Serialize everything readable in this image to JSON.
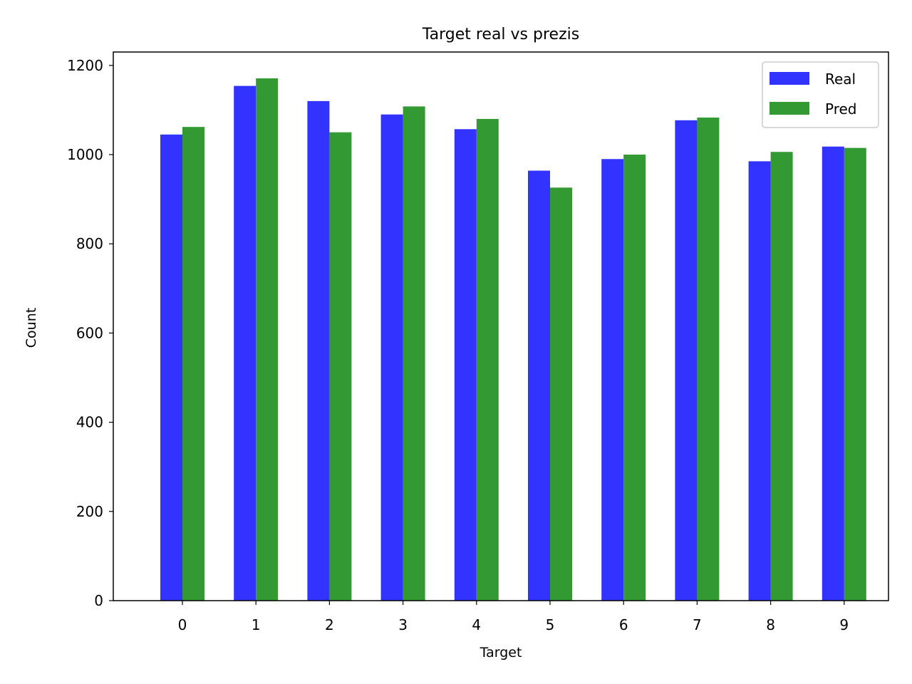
{
  "chart_data": {
    "type": "bar",
    "title": "Target real vs prezis",
    "xlabel": "Target",
    "ylabel": "Count",
    "categories": [
      "0",
      "1",
      "2",
      "3",
      "4",
      "5",
      "6",
      "7",
      "8",
      "9"
    ],
    "series": [
      {
        "name": "Real",
        "color": "#3333ff",
        "values": [
          1045,
          1154,
          1120,
          1090,
          1057,
          964,
          990,
          1077,
          985,
          1018
        ]
      },
      {
        "name": "Pred",
        "color": "#339933",
        "values": [
          1062,
          1171,
          1050,
          1108,
          1080,
          926,
          1000,
          1083,
          1006,
          1015
        ]
      }
    ],
    "ylim": [
      0,
      1230
    ],
    "yticks": [
      0,
      200,
      400,
      600,
      800,
      1000,
      1200
    ],
    "grid": false,
    "legend": "top-right"
  }
}
